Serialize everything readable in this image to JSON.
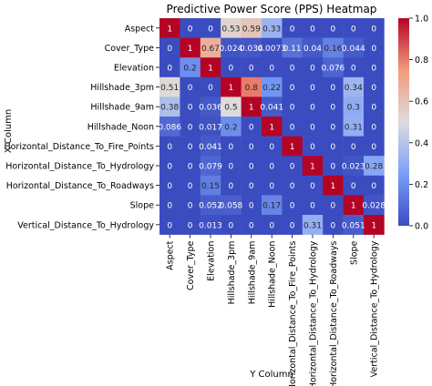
{
  "chart_data": {
    "type": "heatmap",
    "title": "Predictive Power Score (PPS) Heatmap",
    "xlabel": "Y Column",
    "ylabel": "X Column",
    "x_labels": [
      "Aspect",
      "Cover_Type",
      "Elevation",
      "Hillshade_3pm",
      "Hillshade_9am",
      "Hillshade_Noon",
      "Horizontal_Distance_To_Fire_Points",
      "Horizontal_Distance_To_Hydrology",
      "Horizontal_Distance_To_Roadways",
      "Slope",
      "Vertical_Distance_To_Hydrology"
    ],
    "y_labels": [
      "Aspect",
      "Cover_Type",
      "Elevation",
      "Hillshade_3pm",
      "Hillshade_9am",
      "Hillshade_Noon",
      "Horizontal_Distance_To_Fire_Points",
      "Horizontal_Distance_To_Hydrology",
      "Horizontal_Distance_To_Roadways",
      "Slope",
      "Vertical_Distance_To_Hydrology"
    ],
    "values": [
      [
        1,
        0,
        0,
        0.53,
        0.59,
        0.33,
        0,
        0,
        0,
        0,
        0
      ],
      [
        0,
        1,
        0.67,
        0.024,
        0.034,
        0.0073,
        0.11,
        0.04,
        0.16,
        0.044,
        0
      ],
      [
        0,
        0.2,
        1,
        0,
        0,
        0,
        0,
        0,
        0.076,
        0,
        0
      ],
      [
        0.51,
        0,
        0,
        1,
        0.8,
        0.22,
        0,
        0,
        0,
        0.34,
        0
      ],
      [
        0.38,
        0,
        0.036,
        0.5,
        1,
        0.041,
        0,
        0,
        0,
        0.3,
        0
      ],
      [
        0.086,
        0,
        0.017,
        0.2,
        0,
        1,
        0,
        0,
        0,
        0.31,
        0
      ],
      [
        0,
        0,
        0.041,
        0,
        0,
        0,
        1,
        0,
        0,
        0,
        0
      ],
      [
        0,
        0,
        0.079,
        0,
        0,
        0,
        0,
        1,
        0,
        0.023,
        0.28
      ],
      [
        0,
        0,
        0.15,
        0,
        0,
        0,
        0,
        0,
        1,
        0,
        0
      ],
      [
        0,
        0,
        0.052,
        0.058,
        0,
        0.17,
        0,
        0,
        0,
        1,
        0.028
      ],
      [
        0,
        0,
        0.013,
        0,
        0,
        0,
        0,
        0.31,
        0,
        0.051,
        1
      ]
    ],
    "cell_labels": [
      [
        "1",
        "0",
        "0",
        "0.53",
        "0.59",
        "0.33",
        "0",
        "0",
        "0",
        "0",
        "0"
      ],
      [
        "0",
        "1",
        "0.67",
        "0.024",
        "0.034",
        "0.0073",
        "0.11",
        "0.04",
        "0.16",
        "0.044",
        "0"
      ],
      [
        "0",
        "0.2",
        "1",
        "0",
        "0",
        "0",
        "0",
        "0",
        "0.076",
        "0",
        "0"
      ],
      [
        "0.51",
        "0",
        "0",
        "1",
        "0.8",
        "0.22",
        "0",
        "0",
        "0",
        "0.34",
        "0"
      ],
      [
        "0.38",
        "0",
        "0.036",
        "0.5",
        "1",
        "0.041",
        "0",
        "0",
        "0",
        "0.3",
        "0"
      ],
      [
        "0.086",
        "0",
        "0.017",
        "0.2",
        "0",
        "1",
        "0",
        "0",
        "0",
        "0.31",
        "0"
      ],
      [
        "0",
        "0",
        "0.041",
        "0",
        "0",
        "0",
        "1",
        "0",
        "0",
        "0",
        "0"
      ],
      [
        "0",
        "0",
        "0.079",
        "0",
        "0",
        "0",
        "0",
        "1",
        "0",
        "0.023",
        "0.28"
      ],
      [
        "0",
        "0",
        "0.15",
        "0",
        "0",
        "0",
        "0",
        "0",
        "1",
        "0",
        "0"
      ],
      [
        "0",
        "0",
        "0.052",
        "0.058",
        "0",
        "0.17",
        "0",
        "0",
        "0",
        "1",
        "0.028"
      ],
      [
        "0",
        "0",
        "0.013",
        "0",
        "0",
        "0",
        "0",
        "0.31",
        "0",
        "0.051",
        "1"
      ]
    ],
    "colorscale": "coolwarm",
    "vmin": 0,
    "vmax": 1,
    "colorbar_ticks": [
      "0.0",
      "0.2",
      "0.4",
      "0.6",
      "0.8",
      "1.0"
    ],
    "colorbar_tick_values": [
      0,
      0.2,
      0.4,
      0.6,
      0.8,
      1.0
    ],
    "grid": false,
    "legend": "colorbar-right"
  }
}
